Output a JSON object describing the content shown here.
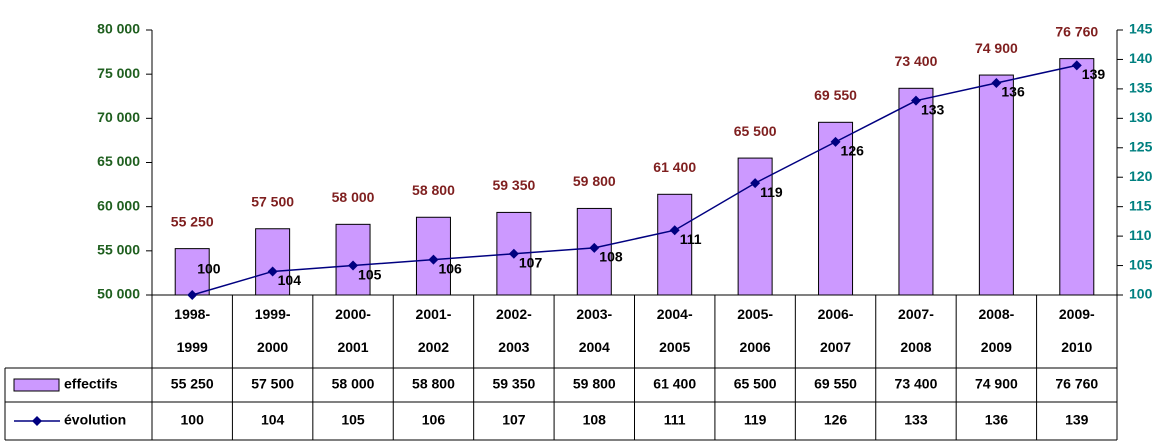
{
  "chart_data": {
    "type": "bar-line",
    "categories": [
      "1998-1999",
      "1999-2000",
      "2000-2001",
      "2001-2002",
      "2002-2003",
      "2003-2004",
      "2004-2005",
      "2005-2006",
      "2006-2007",
      "2007-2008",
      "2008-2009",
      "2009-2010"
    ],
    "series": [
      {
        "name": "effectifs",
        "type": "bar",
        "color": "#cc99ff",
        "label_color": "#7f1f1f",
        "values": [
          55250,
          57500,
          58000,
          58800,
          59350,
          59800,
          61400,
          65500,
          69550,
          73400,
          74900,
          76760
        ],
        "value_labels": [
          "55 250",
          "57 500",
          "58 000",
          "58 800",
          "59 350",
          "59 800",
          "61 400",
          "65 500",
          "69 550",
          "73 400",
          "74 900",
          "76 760"
        ]
      },
      {
        "name": "évolution",
        "type": "line",
        "axis": "y2",
        "color": "#000080",
        "label_color": "#000000",
        "values": [
          100,
          104,
          105,
          106,
          107,
          108,
          111,
          119,
          126,
          133,
          136,
          139
        ]
      }
    ],
    "ylim": [
      50000,
      80000
    ],
    "yticks": [
      {
        "value": 50000,
        "label": "50 000"
      },
      {
        "value": 55000,
        "label": "55 000"
      },
      {
        "value": 60000,
        "label": "60 000"
      },
      {
        "value": 65000,
        "label": "65 000"
      },
      {
        "value": 70000,
        "label": "70 000"
      },
      {
        "value": 75000,
        "label": "75 000"
      },
      {
        "value": 80000,
        "label": "80 000"
      }
    ],
    "ytick_color": "#1f5f1f",
    "y2lim": [
      100,
      145
    ],
    "y2ticks": [
      100,
      105,
      110,
      115,
      120,
      125,
      130,
      135,
      140,
      145
    ],
    "y2tick_color": "#008080",
    "data_table": true
  }
}
